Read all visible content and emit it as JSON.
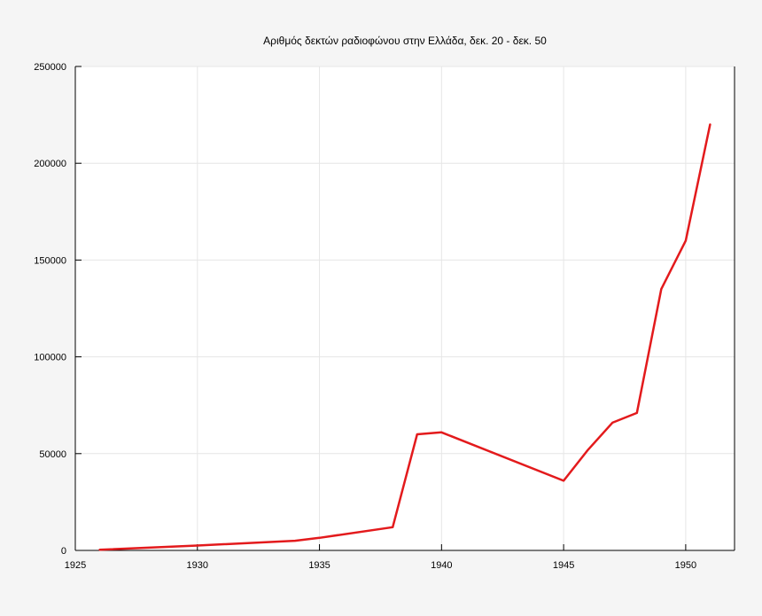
{
  "chart_data": {
    "type": "line",
    "title": "Αριθμός δεκτών ραδιοφώνου στην Ελλάδα, δεκ. 20 - δεκ. 50",
    "xlabel": "",
    "ylabel": "",
    "xlim": [
      1925,
      1952
    ],
    "ylim": [
      0,
      250000
    ],
    "x_ticks": [
      1925,
      1930,
      1935,
      1940,
      1945,
      1950
    ],
    "y_ticks": [
      0,
      50000,
      100000,
      150000,
      200000,
      250000
    ],
    "grid": true,
    "legend": "none",
    "series": [
      {
        "color": "#e31a1c",
        "points": [
          {
            "x": 1926,
            "y": 300
          },
          {
            "x": 1930,
            "y": 2500
          },
          {
            "x": 1934,
            "y": 5000
          },
          {
            "x": 1935,
            "y": 6500
          },
          {
            "x": 1938,
            "y": 12000
          },
          {
            "x": 1939,
            "y": 60000
          },
          {
            "x": 1940,
            "y": 61000
          },
          {
            "x": 1945,
            "y": 36000
          },
          {
            "x": 1946,
            "y": 52000
          },
          {
            "x": 1947,
            "y": 66000
          },
          {
            "x": 1948,
            "y": 71000
          },
          {
            "x": 1949,
            "y": 135000
          },
          {
            "x": 1950,
            "y": 160000
          },
          {
            "x": 1951,
            "y": 220000
          }
        ]
      }
    ]
  }
}
